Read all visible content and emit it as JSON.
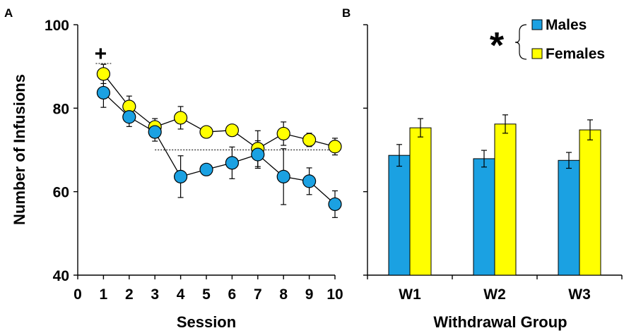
{
  "chart_data": [
    {
      "panel": "A",
      "type": "line",
      "xlabel": "Session",
      "ylabel": "Number of Infusions",
      "xlim": [
        0,
        10
      ],
      "ylim": [
        40,
        100
      ],
      "x_ticks": [
        "0",
        "1",
        "2",
        "3",
        "4",
        "5",
        "6",
        "7",
        "8",
        "9",
        "10"
      ],
      "y_ticks": [
        "40",
        "60",
        "80",
        "100"
      ],
      "x": [
        1,
        2,
        3,
        4,
        5,
        6,
        7,
        8,
        9,
        10
      ],
      "series": [
        {
          "name": "Females",
          "color": "#FFFF00",
          "values": [
            88.2,
            80.4,
            75.5,
            77.7,
            74.3,
            74.7,
            70.3,
            73.9,
            72.4,
            70.8
          ],
          "errors": [
            2.3,
            2.5,
            2.0,
            2.7,
            1.2,
            1.2,
            4.3,
            2.8,
            1.6,
            2.0
          ]
        },
        {
          "name": "Males",
          "color": "#1BA1E2",
          "values": [
            83.7,
            77.9,
            74.3,
            63.6,
            65.3,
            66.9,
            68.9,
            63.6,
            62.5,
            57.0
          ],
          "errors": [
            3.5,
            2.3,
            2.2,
            5.0,
            1.0,
            3.8,
            3.3,
            6.7,
            3.2,
            3.2
          ]
        }
      ],
      "annotations": [
        {
          "text": "+",
          "x": 1
        }
      ],
      "reference_lines": [
        {
          "y": 90.7,
          "x_from": 0.7,
          "x_to": 1.3
        },
        {
          "y": 70.0,
          "x_from": 3.0,
          "x_to": 10.0
        }
      ]
    },
    {
      "panel": "B",
      "type": "bar",
      "xlabel": "Withdrawal Group",
      "ylabel": "",
      "ylim": [
        40,
        100
      ],
      "categories": [
        "W1",
        "W2",
        "W3"
      ],
      "series": [
        {
          "name": "Males",
          "color": "#1BA1E2",
          "values": [
            68.7,
            67.9,
            67.5
          ],
          "errors": [
            2.6,
            2.0,
            1.9
          ]
        },
        {
          "name": "Females",
          "color": "#FFFF00",
          "values": [
            75.3,
            76.2,
            74.8
          ],
          "errors": [
            2.2,
            2.2,
            2.4
          ]
        }
      ],
      "legend": {
        "placement": "top-right",
        "significance_marker": "*"
      }
    }
  ]
}
